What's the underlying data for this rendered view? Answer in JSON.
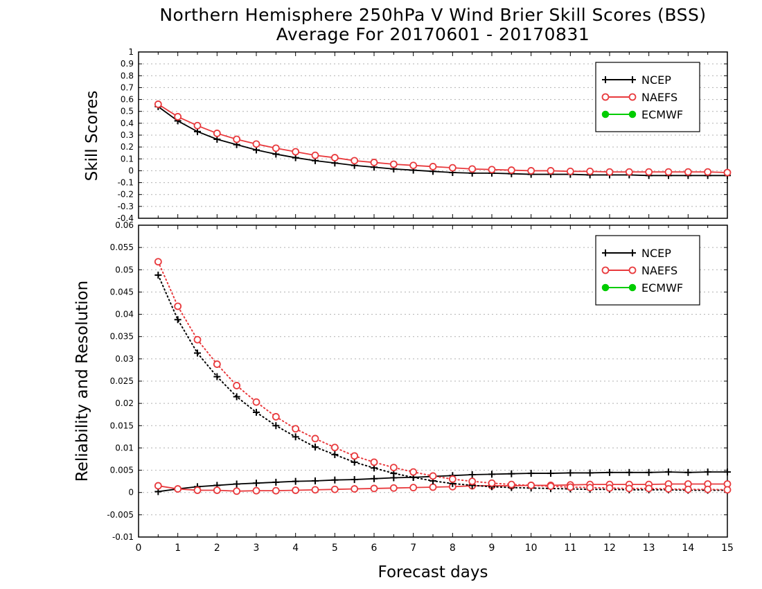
{
  "title": {
    "line1": "Northern Hemisphere 250hPa V Wind Brier Skill Scores (BSS)",
    "line2": "Average For 20170601 - 20170831"
  },
  "xlabel": "Forecast days",
  "colors": {
    "NCEP": "#000000",
    "NAEFS": "#e8393c",
    "ECMWF": "#00cc00"
  },
  "chart_data": [
    {
      "type": "line",
      "ylabel": "Skill Scores",
      "xlim": [
        0,
        15
      ],
      "ylim": [
        -0.4,
        1
      ],
      "xticks": [
        0,
        1,
        2,
        3,
        4,
        5,
        6,
        7,
        8,
        9,
        10,
        11,
        12,
        13,
        14,
        15
      ],
      "yticks": [
        "-0.4",
        "-0.3",
        "-0.2",
        "-0.1",
        "0",
        "0.1",
        "0.2",
        "0.3",
        "0.4",
        "0.5",
        "0.6",
        "0.7",
        "0.8",
        "0.9",
        "1"
      ],
      "grid": true,
      "legend_position": "top-right",
      "legend": [
        {
          "name": "NCEP",
          "marker": "plus"
        },
        {
          "name": "NAEFS",
          "marker": "circle"
        },
        {
          "name": "ECMWF",
          "marker": "dot"
        }
      ],
      "x": [
        0.5,
        1,
        1.5,
        2,
        2.5,
        3,
        3.5,
        4,
        4.5,
        5,
        5.5,
        6,
        6.5,
        7,
        7.5,
        8,
        8.5,
        9,
        9.5,
        10,
        10.5,
        11,
        11.5,
        12,
        12.5,
        13,
        13.5,
        14,
        14.5,
        15
      ],
      "series": [
        {
          "name": "NCEP",
          "style": "solid",
          "marker": "plus",
          "values": [
            0.54,
            0.42,
            0.33,
            0.265,
            0.22,
            0.175,
            0.14,
            0.11,
            0.085,
            0.065,
            0.045,
            0.03,
            0.015,
            0.005,
            -0.005,
            -0.015,
            -0.02,
            -0.02,
            -0.025,
            -0.03,
            -0.03,
            -0.03,
            -0.035,
            -0.035,
            -0.035,
            -0.04,
            -0.04,
            -0.04,
            -0.04,
            -0.04
          ]
        },
        {
          "name": "NAEFS",
          "style": "solid",
          "marker": "circle",
          "values": [
            0.56,
            0.455,
            0.38,
            0.315,
            0.265,
            0.225,
            0.19,
            0.16,
            0.13,
            0.11,
            0.085,
            0.07,
            0.055,
            0.045,
            0.035,
            0.025,
            0.015,
            0.01,
            0.005,
            0.0,
            0.0,
            -0.005,
            -0.005,
            -0.01,
            -0.01,
            -0.01,
            -0.01,
            -0.01,
            -0.01,
            -0.015
          ]
        }
      ]
    },
    {
      "type": "line",
      "ylabel": "Reliability and Resolution",
      "xlim": [
        0,
        15
      ],
      "ylim": [
        -0.01,
        0.06
      ],
      "xticks": [
        0,
        1,
        2,
        3,
        4,
        5,
        6,
        7,
        8,
        9,
        10,
        11,
        12,
        13,
        14,
        15
      ],
      "yticks": [
        "-0.01",
        "-0.005",
        "0",
        "0.005",
        "0.01",
        "0.015",
        "0.02",
        "0.025",
        "0.03",
        "0.035",
        "0.04",
        "0.045",
        "0.05",
        "0.055",
        "0.06"
      ],
      "grid": true,
      "legend_position": "top-right",
      "legend": [
        {
          "name": "NCEP",
          "marker": "plus"
        },
        {
          "name": "NAEFS",
          "marker": "circle"
        },
        {
          "name": "ECMWF",
          "marker": "dot"
        }
      ],
      "x": [
        0.5,
        1,
        1.5,
        2,
        2.5,
        3,
        3.5,
        4,
        4.5,
        5,
        5.5,
        6,
        6.5,
        7,
        7.5,
        8,
        8.5,
        9,
        9.5,
        10,
        10.5,
        11,
        11.5,
        12,
        12.5,
        13,
        13.5,
        14,
        14.5,
        15
      ],
      "series": [
        {
          "name": "NCEP",
          "style": "solid",
          "marker": "plus",
          "values": [
            0.0002,
            0.0008,
            0.0013,
            0.0016,
            0.0019,
            0.0021,
            0.0023,
            0.0025,
            0.0026,
            0.0028,
            0.0029,
            0.0031,
            0.0033,
            0.0034,
            0.0036,
            0.0038,
            0.004,
            0.0041,
            0.0042,
            0.0043,
            0.0043,
            0.0044,
            0.0044,
            0.0045,
            0.0045,
            0.0045,
            0.0046,
            0.0045,
            0.0046,
            0.0046
          ]
        },
        {
          "name": "NAEFS",
          "style": "solid",
          "marker": "circle",
          "values": [
            0.0015,
            0.0008,
            0.0005,
            0.0005,
            0.0003,
            0.0004,
            0.0004,
            0.0005,
            0.0006,
            0.0007,
            0.0008,
            0.0009,
            0.001,
            0.0011,
            0.0012,
            0.0013,
            0.0015,
            0.0015,
            0.0015,
            0.0016,
            0.0016,
            0.0017,
            0.0018,
            0.0018,
            0.0018,
            0.0018,
            0.0019,
            0.0019,
            0.0019,
            0.0019
          ]
        },
        {
          "name": "NCEP",
          "style": "dotted",
          "marker": "plus",
          "values": [
            0.0488,
            0.0388,
            0.0313,
            0.026,
            0.0215,
            0.018,
            0.015,
            0.0125,
            0.0102,
            0.0085,
            0.0068,
            0.0055,
            0.0043,
            0.0034,
            0.0026,
            0.002,
            0.0016,
            0.0013,
            0.0011,
            0.001,
            0.0009,
            0.0008,
            0.0007,
            0.0007,
            0.0006,
            0.0006,
            0.0006,
            0.0005,
            0.0005,
            0.0005
          ]
        },
        {
          "name": "NAEFS",
          "style": "dotted",
          "marker": "circle",
          "values": [
            0.0518,
            0.0418,
            0.0343,
            0.0288,
            0.024,
            0.0203,
            0.017,
            0.0143,
            0.0121,
            0.0101,
            0.0082,
            0.0068,
            0.0056,
            0.0046,
            0.0037,
            0.003,
            0.0025,
            0.0021,
            0.0018,
            0.0016,
            0.0014,
            0.0012,
            0.0011,
            0.001,
            0.0009,
            0.0009,
            0.0008,
            0.0007,
            0.0007,
            0.0006
          ]
        }
      ]
    }
  ]
}
